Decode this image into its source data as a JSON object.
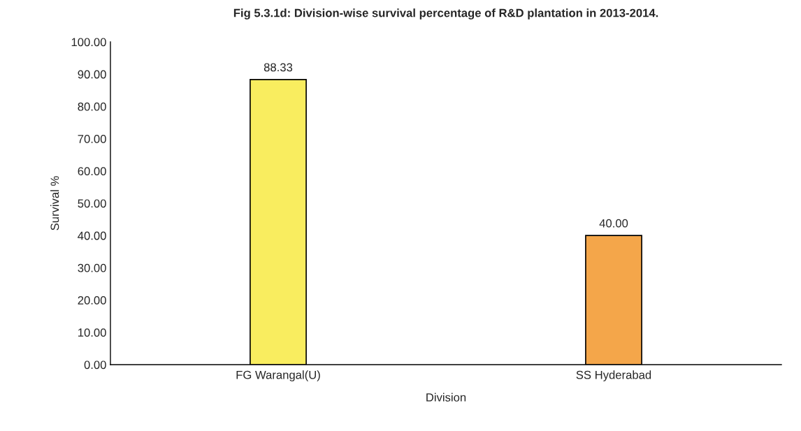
{
  "chart_data": {
    "type": "bar",
    "title": "Fig 5.3.1d: Division-wise survival percentage of R&D plantation in 2013-2014.",
    "xlabel": "Division",
    "ylabel": "Survival %",
    "categories": [
      "FG Warangal(U)",
      "SS Hyderabad"
    ],
    "values": [
      88.33,
      40.0
    ],
    "colors": [
      "#f9ed5f",
      "#f4a64a"
    ],
    "value_labels": [
      "88.33",
      "40.00"
    ],
    "ylim": [
      0,
      100
    ],
    "yticks": [
      {
        "value": 0,
        "label": "0.00"
      },
      {
        "value": 10,
        "label": "10.00"
      },
      {
        "value": 20,
        "label": "20.00"
      },
      {
        "value": 30,
        "label": "30.00"
      },
      {
        "value": 40,
        "label": "40.00"
      },
      {
        "value": 50,
        "label": "50.00"
      },
      {
        "value": 60,
        "label": "60.00"
      },
      {
        "value": 70,
        "label": "70.00"
      },
      {
        "value": 80,
        "label": "80.00"
      },
      {
        "value": 90,
        "label": "90.00"
      },
      {
        "value": 100,
        "label": "100.00"
      }
    ],
    "grid": false,
    "legend": false
  }
}
